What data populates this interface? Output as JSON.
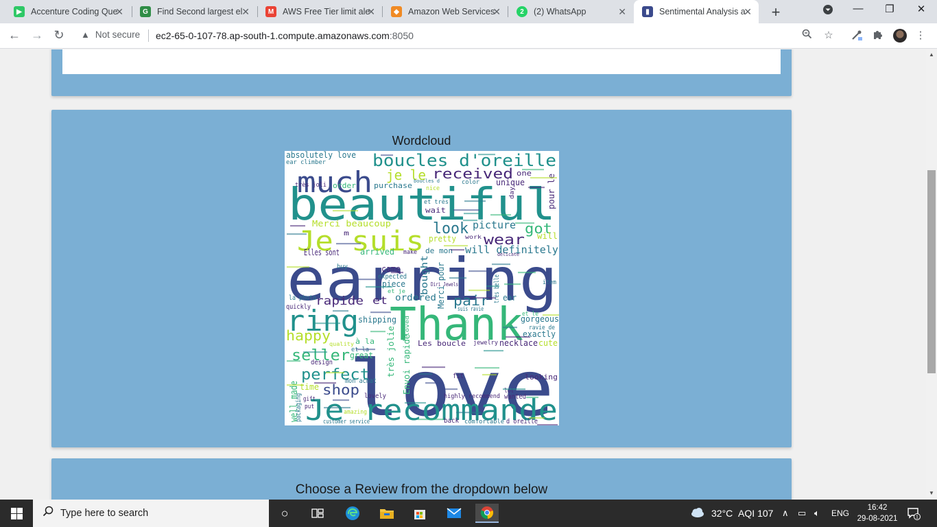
{
  "browser": {
    "tabs": [
      {
        "title": "Accenture Coding Que",
        "favicon_color": "#2ec866",
        "favicon_glyph": "▶",
        "active": false
      },
      {
        "title": "Find Second largest el",
        "favicon_color": "#2f8d46",
        "favicon_glyph": "G",
        "active": false
      },
      {
        "title": "AWS Free Tier limit ale",
        "favicon_color": "#ea4335",
        "favicon_glyph": "M",
        "active": false
      },
      {
        "title": "Amazon Web Services",
        "favicon_color": "#f08a24",
        "favicon_glyph": "◆",
        "active": false
      },
      {
        "title": "(2) WhatsApp",
        "favicon_color": "#25d366",
        "favicon_glyph": "2",
        "active": false
      },
      {
        "title": "Sentimental Analysis a",
        "favicon_color": "#3b4a8c",
        "favicon_glyph": "▮",
        "active": true
      }
    ],
    "security_label": "Not secure",
    "url_host": "ec2-65-0-107-78.ap-south-1.compute.amazonaws.com",
    "url_port": ":8050"
  },
  "page": {
    "wordcloud_title": "Wordcloud",
    "review_title": "Choose a Review from the dropdown below"
  },
  "wordcloud": {
    "colors": {
      "navy": "#3b4b8c",
      "teal": "#21918c",
      "green": "#35b779",
      "lime": "#b5de2b",
      "purple": "#482878",
      "sea": "#2a788e"
    },
    "words": [
      {
        "text": "love",
        "color": "navy"
      },
      {
        "text": "earring",
        "color": "navy"
      },
      {
        "text": "beautiful",
        "color": "teal"
      },
      {
        "text": "Thank",
        "color": "green"
      },
      {
        "text": "Je recommande",
        "color": "teal"
      },
      {
        "text": "Je suis",
        "color": "lime"
      },
      {
        "text": "much",
        "color": "navy"
      },
      {
        "text": "ring",
        "color": "teal"
      },
      {
        "text": "boucles d'oreille",
        "color": "teal"
      },
      {
        "text": "received",
        "color": "purple"
      },
      {
        "text": "je le",
        "color": "lime"
      },
      {
        "text": "absolutely love",
        "color": "sea"
      },
      {
        "text": "ear climber",
        "color": "sea"
      },
      {
        "text": "order",
        "color": "green"
      },
      {
        "text": "purchase",
        "color": "sea"
      },
      {
        "text": "très joli",
        "color": "purple"
      },
      {
        "text": "unique",
        "color": "purple"
      },
      {
        "text": "one",
        "color": "purple"
      },
      {
        "text": "pour le",
        "color": "purple"
      },
      {
        "text": "look",
        "color": "sea"
      },
      {
        "text": "picture",
        "color": "sea"
      },
      {
        "text": "got",
        "color": "green"
      },
      {
        "text": "wear",
        "color": "purple"
      },
      {
        "text": "will",
        "color": "lime"
      },
      {
        "text": "will definitely",
        "color": "sea"
      },
      {
        "text": "Merci beaucoup",
        "color": "lime"
      },
      {
        "text": "wait",
        "color": "purple"
      },
      {
        "text": "pretty",
        "color": "lime"
      },
      {
        "text": "Elles sont",
        "color": "purple"
      },
      {
        "text": "arrived",
        "color": "green"
      },
      {
        "text": "de mon",
        "color": "sea"
      },
      {
        "text": "rapide",
        "color": "purple"
      },
      {
        "text": "et",
        "color": "purple"
      },
      {
        "text": "pair",
        "color": "sea"
      },
      {
        "text": "ear",
        "color": "sea"
      },
      {
        "text": "came",
        "color": "purple"
      },
      {
        "text": "expected",
        "color": "sea"
      },
      {
        "text": "piece",
        "color": "sea"
      },
      {
        "text": "ordered",
        "color": "sea"
      },
      {
        "text": "happy",
        "color": "lime"
      },
      {
        "text": "shipping",
        "color": "sea"
      },
      {
        "text": "gorgeous",
        "color": "sea"
      },
      {
        "text": "exactly",
        "color": "sea"
      },
      {
        "text": "cute",
        "color": "lime"
      },
      {
        "text": "necklace",
        "color": "purple"
      },
      {
        "text": "seller",
        "color": "green"
      },
      {
        "text": "Les boucle",
        "color": "purple"
      },
      {
        "text": "jewelry",
        "color": "purple"
      },
      {
        "text": "great",
        "color": "green"
      },
      {
        "text": "perfect",
        "color": "teal"
      },
      {
        "text": "shop",
        "color": "navy"
      },
      {
        "text": "design",
        "color": "purple"
      },
      {
        "text": "looking",
        "color": "purple"
      },
      {
        "text": "time",
        "color": "lime"
      },
      {
        "text": "fit",
        "color": "purple"
      },
      {
        "text": "mon achat",
        "color": "sea"
      },
      {
        "text": "lovely",
        "color": "purple"
      },
      {
        "text": "highly recommend",
        "color": "purple"
      },
      {
        "text": "wanted",
        "color": "purple"
      },
      {
        "text": "customer service",
        "color": "sea"
      },
      {
        "text": "back",
        "color": "purple"
      },
      {
        "text": "comfortable",
        "color": "sea"
      },
      {
        "text": "d oreille",
        "color": "purple"
      },
      {
        "text": "quickly",
        "color": "purple"
      },
      {
        "text": "la photo",
        "color": "sea"
      },
      {
        "text": "Envoi rapide",
        "color": "green"
      },
      {
        "text": "très jolie",
        "color": "green"
      },
      {
        "text": "bought",
        "color": "sea"
      },
      {
        "text": "Merci pour",
        "color": "sea"
      },
      {
        "text": "well made",
        "color": "green"
      },
      {
        "text": "packaging",
        "color": "sea"
      },
      {
        "text": "amazing",
        "color": "lime"
      },
      {
        "text": "buy",
        "color": "sea"
      },
      {
        "text": "make",
        "color": "purple"
      },
      {
        "text": "très belle",
        "color": "sea"
      },
      {
        "text": "m",
        "color": "purple"
      },
      {
        "text": "item",
        "color": "sea"
      },
      {
        "text": "Diri Jewels",
        "color": "purple"
      },
      {
        "text": "suis ravie",
        "color": "sea"
      },
      {
        "text": "et le",
        "color": "green"
      },
      {
        "text": "ravie de",
        "color": "sea"
      },
      {
        "text": "à la",
        "color": "green"
      },
      {
        "text": "et la",
        "color": "sea"
      },
      {
        "text": "lot",
        "color": "purple"
      },
      {
        "text": "gift",
        "color": "purple"
      },
      {
        "text": "put",
        "color": "purple"
      },
      {
        "text": "nice",
        "color": "lime"
      },
      {
        "text": "color",
        "color": "sea"
      },
      {
        "text": "day",
        "color": "purple"
      },
      {
        "text": "et très",
        "color": "sea"
      },
      {
        "text": "quality",
        "color": "lime"
      },
      {
        "text": "boucles d",
        "color": "sea"
      },
      {
        "text": "loved",
        "color": "green"
      },
      {
        "text": "work",
        "color": "purple"
      },
      {
        "text": "delicate",
        "color": "purple"
      },
      {
        "text": "et je",
        "color": "green"
      }
    ]
  }
}
